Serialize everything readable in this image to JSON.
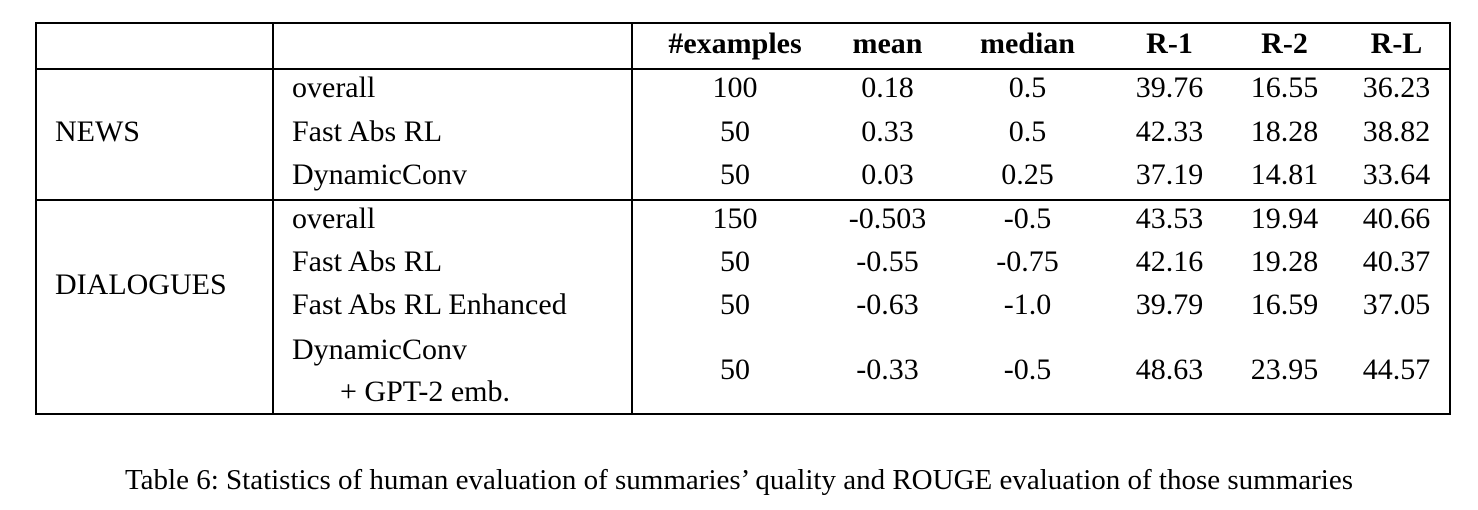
{
  "table": {
    "headers": [
      "#examples",
      "mean",
      "median",
      "R-1",
      "R-2",
      "R-L"
    ],
    "groups": [
      {
        "name": "NEWS",
        "rows": [
          {
            "model": "overall",
            "values": [
              "100",
              "0.18",
              "0.5",
              "39.76",
              "16.55",
              "36.23"
            ]
          },
          {
            "model": "Fast Abs RL",
            "values": [
              "50",
              "0.33",
              "0.5",
              "42.33",
              "18.28",
              "38.82"
            ]
          },
          {
            "model": "DynamicConv",
            "values": [
              "50",
              "0.03",
              "0.25",
              "37.19",
              "14.81",
              "33.64"
            ]
          }
        ]
      },
      {
        "name": "DIALOGUES",
        "rows": [
          {
            "model": "overall",
            "values": [
              "150",
              "-0.503",
              "-0.5",
              "43.53",
              "19.94",
              "40.66"
            ]
          },
          {
            "model": "Fast Abs RL",
            "values": [
              "50",
              "-0.55",
              "-0.75",
              "42.16",
              "19.28",
              "40.37"
            ]
          },
          {
            "model": "Fast Abs RL Enhanced",
            "values": [
              "50",
              "-0.63",
              "-1.0",
              "39.79",
              "16.59",
              "37.05"
            ]
          },
          {
            "model": "DynamicConv",
            "model_line2": "+ GPT-2 emb.",
            "values": [
              "50",
              "-0.33",
              "-0.5",
              "48.63",
              "23.95",
              "44.57"
            ]
          }
        ]
      }
    ]
  },
  "caption": "Table 6: Statistics of human evaluation of summaries’ quality and ROUGE evaluation of those summaries"
}
